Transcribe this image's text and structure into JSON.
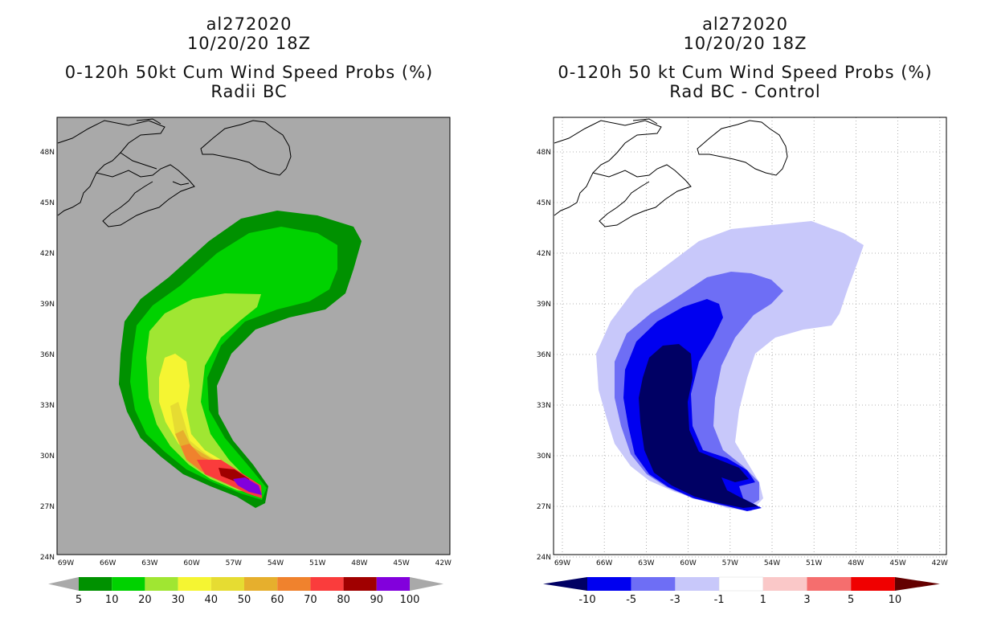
{
  "left_panel": {
    "title_lines": [
      "al272020",
      "10/20/20 18Z",
      "0-120h 50kt Cum Wind Speed Probs (%)",
      "Radii BC"
    ],
    "colorbar": {
      "labels": [
        "5",
        "10",
        "20",
        "30",
        "40",
        "50",
        "60",
        "70",
        "80",
        "90",
        "100"
      ],
      "colors": [
        "#009100",
        "#00d200",
        "#a0e632",
        "#f5f532",
        "#e6dc32",
        "#e6af2d",
        "#f0822d",
        "#fa3c3c",
        "#a00000",
        "#8200dc"
      ]
    },
    "background_color": "#a9a9a9"
  },
  "right_panel": {
    "title_lines": [
      "al272020",
      "10/20/20 18Z",
      "0-120h 50 kt Cum Wind Speed Probs (%)",
      "Rad BC - Control"
    ],
    "colorbar": {
      "labels": [
        "-10",
        "-5",
        "-3",
        "-1",
        "1",
        "3",
        "5",
        "10"
      ],
      "colors": [
        "#000064",
        "#0000f0",
        "#6e6ef5",
        "#c8c8fa",
        "#ffffff",
        "#fac8c8",
        "#f56e6e",
        "#f00000",
        "#640000"
      ]
    }
  },
  "axes": {
    "lon_labels": [
      "69W",
      "66W",
      "63W",
      "60W",
      "57W",
      "54W",
      "51W",
      "48W",
      "45W",
      "42W"
    ],
    "lat_labels": [
      "48N",
      "45N",
      "42N",
      "39N",
      "36N",
      "33N",
      "30N",
      "27N",
      "24N"
    ]
  }
}
